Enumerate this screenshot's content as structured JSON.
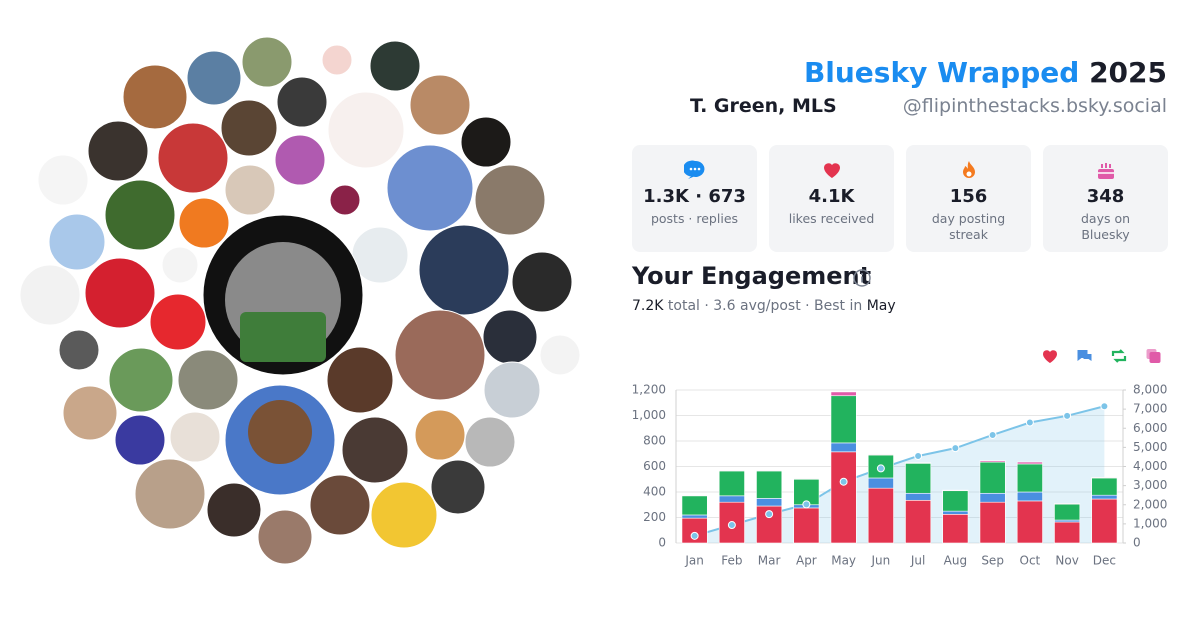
{
  "header": {
    "title_brand": "Bluesky Wrapped",
    "title_year": "2025",
    "name": "T. Green, MLS",
    "handle": "@flipinthestacks.bsky.social"
  },
  "stats": [
    {
      "value": "1.3K · 673",
      "label": "posts · replies"
    },
    {
      "value": "4.1K",
      "label": "likes received"
    },
    {
      "value": "156",
      "label": "day posting streak"
    },
    {
      "value": "348",
      "label": "days on Bluesky"
    }
  ],
  "engagement": {
    "heading": "Your Engagement",
    "summary": [
      "7.2K",
      "total · 3.6 avg/post · Best in",
      "May"
    ]
  },
  "chart_data": {
    "type": "stacked-bar-line",
    "categories": [
      "Jan",
      "Feb",
      "Mar",
      "Apr",
      "May",
      "Jun",
      "Jul",
      "Aug",
      "Sep",
      "Oct",
      "Nov",
      "Dec"
    ],
    "series": [
      {
        "color": "#e3344f",
        "values": [
          195,
          320,
          290,
          275,
          715,
          430,
          335,
          225,
          320,
          330,
          165,
          345
        ]
      },
      {
        "color": "#4a8fe0",
        "values": [
          25,
          50,
          60,
          25,
          70,
          80,
          55,
          25,
          70,
          70,
          15,
          30
        ]
      },
      {
        "color": "#22b35e",
        "values": [
          150,
          195,
          215,
          200,
          370,
          180,
          235,
          160,
          245,
          220,
          125,
          135
        ]
      },
      {
        "color": "#e05aa8",
        "values": [
          5,
          5,
          5,
          5,
          30,
          5,
          5,
          5,
          10,
          15,
          5,
          5
        ]
      },
      {
        "type": "line",
        "axis": "y2",
        "color": "#7cc4e8",
        "values": [
          375,
          940,
          1510,
          2020,
          3205,
          3900,
          4550,
          4960,
          5650,
          6300,
          6650,
          7150
        ]
      }
    ],
    "ylim": [
      0,
      1200
    ],
    "yticks": [
      0,
      200,
      400,
      600,
      800,
      {
        "value": 1000,
        "label": "1,000"
      },
      {
        "value": 1200,
        "label": "1,200"
      }
    ],
    "y2lim": [
      0,
      8000
    ],
    "y2ticks": [
      0,
      {
        "value": 1000,
        "label": "1,000"
      },
      {
        "value": 2000,
        "label": "2,000"
      },
      {
        "value": 3000,
        "label": "3,000"
      },
      {
        "value": 4000,
        "label": "4,000"
      },
      {
        "value": 5000,
        "label": "5,000"
      },
      {
        "value": 6000,
        "label": "6,000"
      },
      {
        "value": 7000,
        "label": "7,000"
      },
      {
        "value": 8000,
        "label": "8,000"
      }
    ],
    "grid": true
  }
}
